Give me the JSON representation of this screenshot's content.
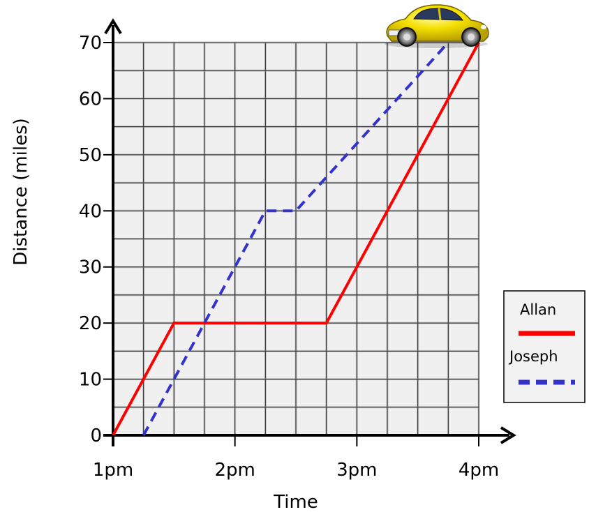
{
  "chart_data": {
    "type": "line",
    "xlabel": "Time",
    "ylabel": "Distance (miles)",
    "x_ticks": [
      {
        "value": 1,
        "label": "1pm"
      },
      {
        "value": 2,
        "label": "2pm"
      },
      {
        "value": 3,
        "label": "3pm"
      },
      {
        "value": 4,
        "label": "4pm"
      }
    ],
    "y_ticks": [
      0,
      10,
      20,
      30,
      40,
      50,
      60,
      70
    ],
    "xlim": [
      1,
      4
    ],
    "ylim": [
      0,
      70
    ],
    "grid": true,
    "legend_position": "right",
    "series": [
      {
        "name": "Allan",
        "color": "#ff0000",
        "style": "solid",
        "points": [
          [
            1,
            0
          ],
          [
            1.5,
            20
          ],
          [
            2.75,
            20
          ],
          [
            4,
            70
          ]
        ]
      },
      {
        "name": "Joseph",
        "color": "#3333cc",
        "style": "dashed",
        "points": [
          [
            1.25,
            0
          ],
          [
            2.25,
            40
          ],
          [
            2.5,
            40
          ],
          [
            3.75,
            70
          ]
        ]
      }
    ],
    "decoration": "yellow-car-icon"
  }
}
